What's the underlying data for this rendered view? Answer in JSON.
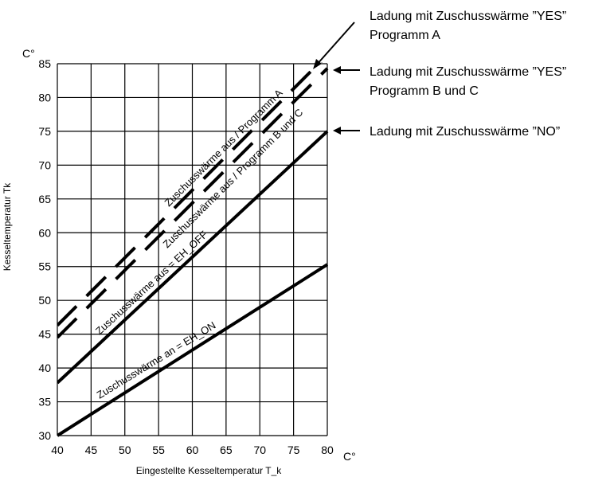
{
  "chart_data": {
    "type": "line",
    "title": "",
    "xlabel": "Eingestellte Kesseltemperatur T_k",
    "ylabel": "Kesseltemperatur Tk",
    "x_unit": "C°",
    "y_unit": "C°",
    "xlim": [
      40,
      80
    ],
    "ylim": [
      30,
      85
    ],
    "x_ticks": [
      40,
      45,
      50,
      55,
      60,
      65,
      70,
      75,
      80
    ],
    "y_ticks": [
      30,
      35,
      40,
      45,
      50,
      55,
      60,
      65,
      70,
      75,
      80,
      85
    ],
    "grid": true,
    "series": [
      {
        "name": "Zuschusswärme an = EH_ON",
        "style": "solid",
        "x": [
          40,
          80
        ],
        "y": [
          30,
          55.3
        ]
      },
      {
        "name": "Zuschusswärme aus = EH_OFF",
        "style": "solid",
        "x": [
          40,
          80
        ],
        "y": [
          37.8,
          75
        ]
      },
      {
        "name": "Zuschusswärme aus / Programm B und C",
        "style": "dashed",
        "x": [
          40,
          80
        ],
        "y": [
          44.5,
          84.3
        ]
      },
      {
        "name": "Zuschusswärme aus / Programm A",
        "style": "dashed",
        "x": [
          40,
          80
        ],
        "y": [
          46.3,
          86.3
        ]
      }
    ],
    "annotations": [
      {
        "line1": "Ladung mit Zuschusswärme ”YES”",
        "line2": "Programm A"
      },
      {
        "line1": "Ladung mit Zuschusswärme ”YES”",
        "line2": "Programm B und C"
      },
      {
        "line1": "Ladung mit Zuschusswärme ”NO”",
        "line2": ""
      }
    ]
  }
}
